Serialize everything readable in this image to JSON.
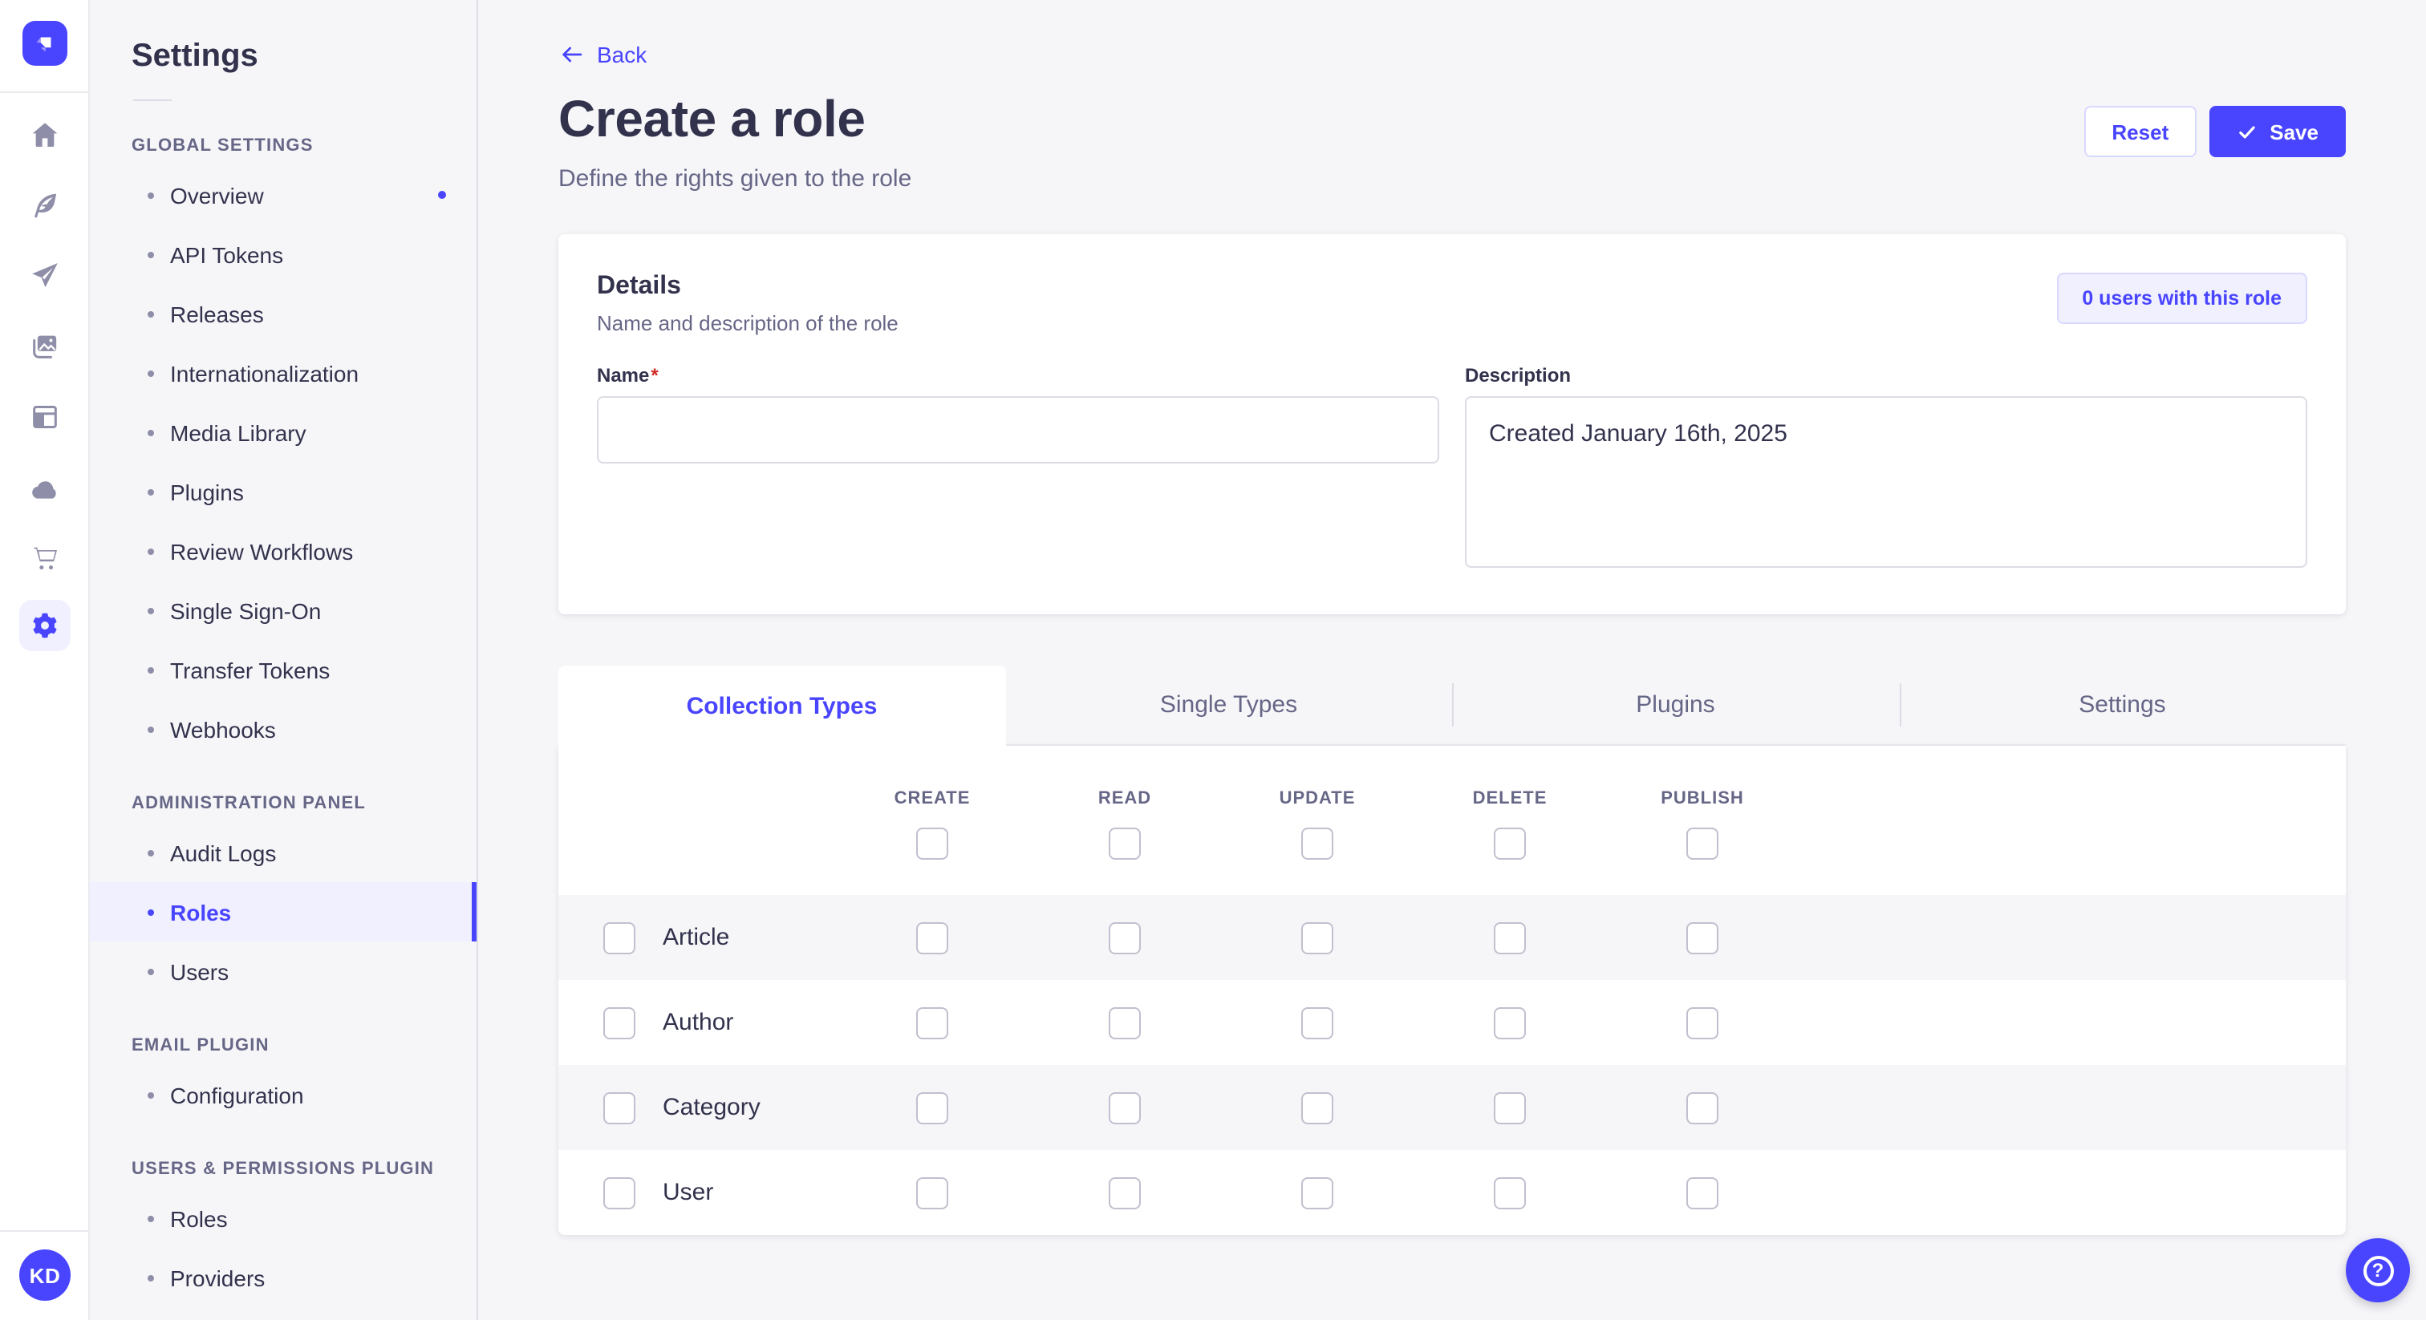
{
  "colors": {
    "accent": "#4945ff",
    "accent_bg": "#f0f0ff",
    "accent_border": "#d9d8ff",
    "page_bg": "#f6f6f9",
    "card_bg": "#ffffff",
    "text": "#32324d",
    "text_muted": "#666687",
    "border": "#dcdce4",
    "checkbox_border": "#c0c0cf",
    "required": "#d02b20"
  },
  "nav_rail": {
    "logo_icon": "strapi-logo",
    "icons": [
      "home-icon",
      "feather-icon",
      "send-icon",
      "images-icon",
      "layout-icon",
      "cloud-icon",
      "cart-icon",
      "gear-icon"
    ],
    "active_icon": "gear-icon",
    "avatar_initials": "KD"
  },
  "sidebar": {
    "title": "Settings",
    "sections": [
      {
        "label": "GLOBAL SETTINGS",
        "items": [
          {
            "label": "Overview",
            "notification_dot": true
          },
          {
            "label": "API Tokens"
          },
          {
            "label": "Releases"
          },
          {
            "label": "Internationalization"
          },
          {
            "label": "Media Library"
          },
          {
            "label": "Plugins"
          },
          {
            "label": "Review Workflows"
          },
          {
            "label": "Single Sign-On"
          },
          {
            "label": "Transfer Tokens"
          },
          {
            "label": "Webhooks"
          }
        ]
      },
      {
        "label": "ADMINISTRATION PANEL",
        "items": [
          {
            "label": "Audit Logs"
          },
          {
            "label": "Roles",
            "active": true
          },
          {
            "label": "Users"
          }
        ]
      },
      {
        "label": "EMAIL PLUGIN",
        "items": [
          {
            "label": "Configuration"
          }
        ]
      },
      {
        "label": "USERS & PERMISSIONS PLUGIN",
        "items": [
          {
            "label": "Roles"
          },
          {
            "label": "Providers"
          }
        ]
      }
    ]
  },
  "header": {
    "back_label": "Back",
    "title": "Create a role",
    "subtitle": "Define the rights given to the role",
    "reset_label": "Reset",
    "save_label": "Save"
  },
  "details": {
    "title": "Details",
    "subtitle": "Name and description of the role",
    "users_pill_label": "0 users with this role",
    "name_label": "Name",
    "name_required": "*",
    "name_value": "",
    "description_label": "Description",
    "description_value": "Created January 16th, 2025"
  },
  "permissions": {
    "tabs": [
      "Collection Types",
      "Single Types",
      "Plugins",
      "Settings"
    ],
    "active_tab": "Collection Types",
    "columns": [
      "Create",
      "Read",
      "Update",
      "Delete",
      "Publish"
    ],
    "rows": [
      "Article",
      "Author",
      "Category",
      "User"
    ],
    "all_checkboxes_checked": false
  },
  "help": {
    "icon": "question-mark-icon"
  }
}
